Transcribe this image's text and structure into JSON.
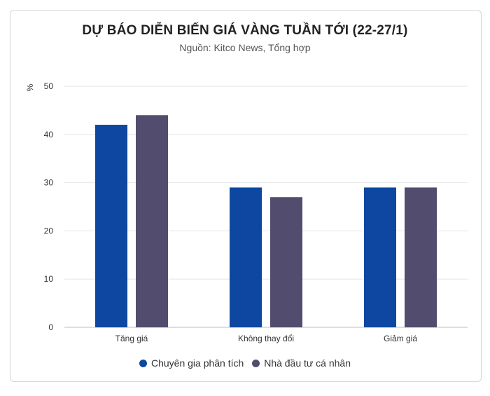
{
  "chart_data": {
    "type": "bar",
    "title": "DỰ BÁO DIỄN BIẾN GIÁ VÀNG TUẦN TỚI (22-27/1)",
    "subtitle": "Nguồn: Kitco News, Tổng hợp",
    "ylabel": "%",
    "ylim": [
      0,
      50
    ],
    "yticks": [
      0,
      10,
      20,
      30,
      40,
      50
    ],
    "grid": true,
    "legend_position": "bottom",
    "categories": [
      "Tăng giá",
      "Không thay đổi",
      "Giảm giá"
    ],
    "series": [
      {
        "name": "Chuyên gia phân tích",
        "color": "#0d47a1",
        "values": [
          42,
          29,
          29
        ]
      },
      {
        "name": "Nhà đầu tư cá nhân",
        "color": "#524d6e",
        "values": [
          44,
          27,
          29
        ]
      }
    ]
  }
}
